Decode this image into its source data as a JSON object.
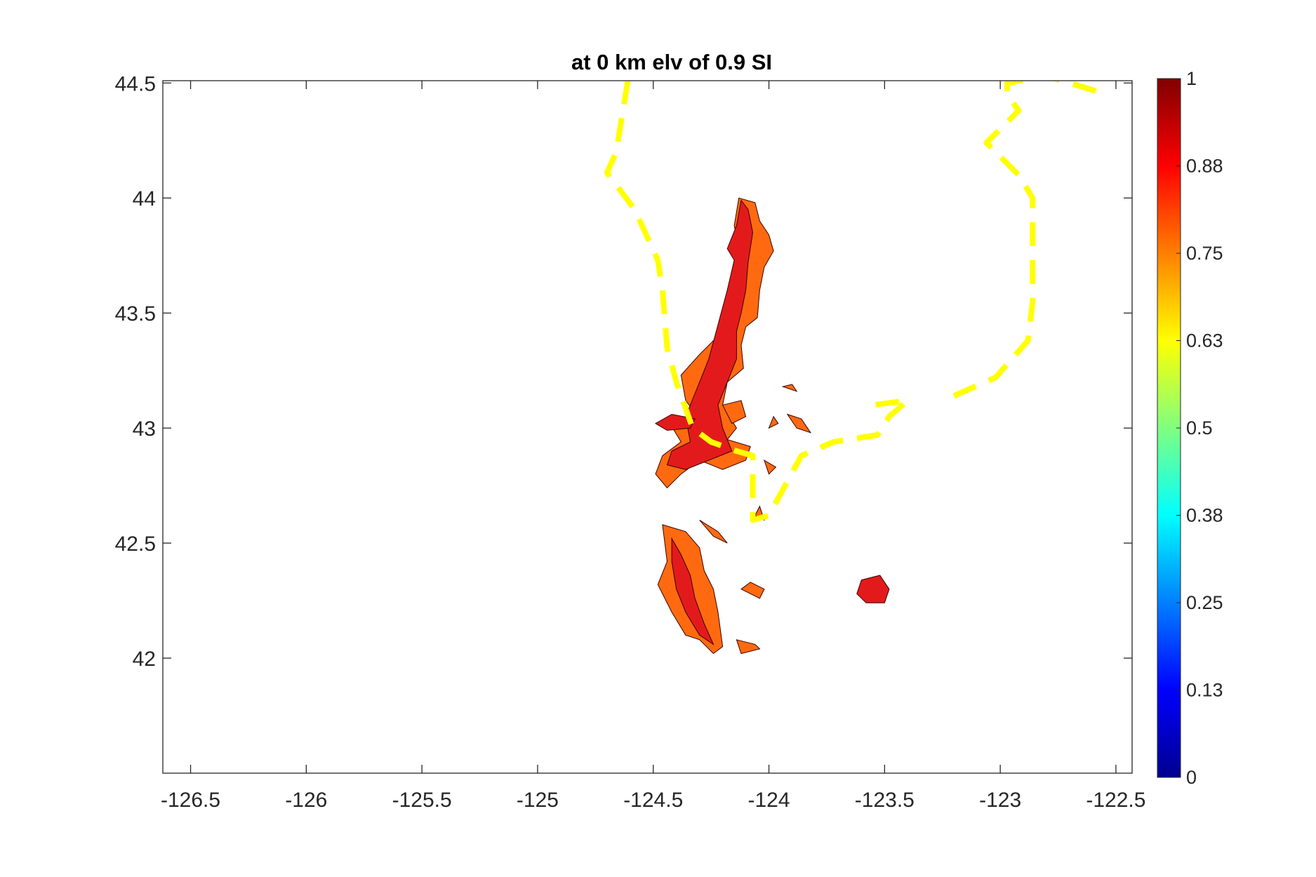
{
  "chart_data": {
    "type": "heatmap",
    "title": "at 0 km elv of 0.9 SI",
    "xlabel": "",
    "ylabel": "",
    "xlim": [
      -126.62,
      -122.43
    ],
    "ylim": [
      41.5,
      44.51
    ],
    "x_ticks": [
      -126.5,
      -126,
      -125.5,
      -125,
      -124.5,
      -124,
      -123.5,
      -123,
      -122.5
    ],
    "x_tick_labels": [
      "-126.5",
      "-126",
      "-125.5",
      "-125",
      "-124.5",
      "-124",
      "-123.5",
      "-123",
      "-122.5"
    ],
    "y_ticks": [
      42,
      42.5,
      43,
      43.5,
      44,
      44.5
    ],
    "y_tick_labels": [
      "42",
      "42.5",
      "43",
      "43.5",
      "44",
      "44.5"
    ],
    "colorbar": {
      "colormap": "jet",
      "range": [
        0,
        1
      ],
      "ticks": [
        0,
        0.125,
        0.25,
        0.375,
        0.5,
        0.625,
        0.75,
        0.875,
        1
      ],
      "tick_labels": [
        "0",
        "0.13",
        "0.25",
        "0.38",
        "0.5",
        "0.63",
        "0.75",
        "0.88",
        "1"
      ]
    },
    "colors": {
      "high": "#e31a1c",
      "mid": "#ff6a10",
      "boundary": "#ffff00"
    },
    "grid": false,
    "regions": [
      {
        "level": 0.8,
        "points": [
          [
            -124.13,
            44.0
          ],
          [
            -124.06,
            43.98
          ],
          [
            -124.04,
            43.9
          ],
          [
            -124.0,
            43.84
          ],
          [
            -123.98,
            43.77
          ],
          [
            -124.02,
            43.7
          ],
          [
            -124.04,
            43.6
          ],
          [
            -124.05,
            43.48
          ],
          [
            -124.1,
            43.44
          ],
          [
            -124.12,
            43.36
          ],
          [
            -124.11,
            43.26
          ],
          [
            -124.18,
            43.2
          ],
          [
            -124.2,
            43.1
          ],
          [
            -124.14,
            43.0
          ],
          [
            -124.18,
            42.95
          ],
          [
            -124.08,
            42.92
          ],
          [
            -124.1,
            42.86
          ],
          [
            -124.2,
            42.82
          ],
          [
            -124.3,
            42.86
          ],
          [
            -124.38,
            42.8
          ],
          [
            -124.44,
            42.74
          ],
          [
            -124.49,
            42.8
          ],
          [
            -124.46,
            42.88
          ],
          [
            -124.38,
            42.94
          ],
          [
            -124.44,
            43.04
          ],
          [
            -124.3,
            43.04
          ],
          [
            -124.36,
            43.12
          ],
          [
            -124.38,
            43.23
          ],
          [
            -124.3,
            43.32
          ],
          [
            -124.22,
            43.4
          ],
          [
            -124.2,
            43.5
          ],
          [
            -124.14,
            43.6
          ],
          [
            -124.12,
            43.75
          ],
          [
            -124.15,
            43.88
          ]
        ]
      },
      {
        "level": 0.92,
        "points": [
          [
            -124.12,
            43.99
          ],
          [
            -124.09,
            43.95
          ],
          [
            -124.07,
            43.85
          ],
          [
            -124.09,
            43.72
          ],
          [
            -124.1,
            43.6
          ],
          [
            -124.12,
            43.5
          ],
          [
            -124.14,
            43.42
          ],
          [
            -124.14,
            43.3
          ],
          [
            -124.18,
            43.2
          ],
          [
            -124.22,
            43.1
          ],
          [
            -124.2,
            43.0
          ],
          [
            -124.16,
            42.9
          ],
          [
            -124.26,
            42.86
          ],
          [
            -124.36,
            42.82
          ],
          [
            -124.44,
            42.84
          ],
          [
            -124.42,
            42.9
          ],
          [
            -124.34,
            42.94
          ],
          [
            -124.36,
            43.05
          ],
          [
            -124.32,
            43.15
          ],
          [
            -124.26,
            43.3
          ],
          [
            -124.22,
            43.45
          ],
          [
            -124.18,
            43.6
          ],
          [
            -124.15,
            43.73
          ],
          [
            -124.18,
            43.78
          ],
          [
            -124.14,
            43.88
          ]
        ]
      },
      {
        "level": 0.92,
        "points": [
          [
            -124.49,
            43.02
          ],
          [
            -124.42,
            43.06
          ],
          [
            -124.32,
            43.04
          ],
          [
            -124.34,
            43.0
          ],
          [
            -124.44,
            42.99
          ]
        ]
      },
      {
        "level": 0.8,
        "points": [
          [
            -124.2,
            43.1
          ],
          [
            -124.12,
            43.12
          ],
          [
            -124.1,
            43.05
          ],
          [
            -124.16,
            43.02
          ]
        ]
      },
      {
        "level": 0.8,
        "points": [
          [
            -124.46,
            42.58
          ],
          [
            -124.36,
            42.55
          ],
          [
            -124.3,
            42.48
          ],
          [
            -124.28,
            42.38
          ],
          [
            -124.24,
            42.3
          ],
          [
            -124.22,
            42.2
          ],
          [
            -124.2,
            42.05
          ],
          [
            -124.24,
            42.02
          ],
          [
            -124.3,
            42.08
          ],
          [
            -124.36,
            42.1
          ],
          [
            -124.42,
            42.2
          ],
          [
            -124.48,
            42.32
          ],
          [
            -124.44,
            42.42
          ]
        ]
      },
      {
        "level": 0.92,
        "points": [
          [
            -124.42,
            42.52
          ],
          [
            -124.38,
            42.45
          ],
          [
            -124.34,
            42.36
          ],
          [
            -124.32,
            42.26
          ],
          [
            -124.28,
            42.15
          ],
          [
            -124.24,
            42.06
          ],
          [
            -124.3,
            42.1
          ],
          [
            -124.36,
            42.2
          ],
          [
            -124.4,
            42.3
          ],
          [
            -124.42,
            42.42
          ]
        ]
      },
      {
        "level": 0.8,
        "points": [
          [
            -124.12,
            42.3
          ],
          [
            -124.04,
            42.26
          ],
          [
            -124.02,
            42.3
          ],
          [
            -124.08,
            42.33
          ]
        ]
      },
      {
        "level": 0.8,
        "points": [
          [
            -124.14,
            42.08
          ],
          [
            -124.06,
            42.06
          ],
          [
            -124.04,
            42.04
          ],
          [
            -124.12,
            42.02
          ]
        ]
      },
      {
        "level": 0.8,
        "points": [
          [
            -124.3,
            42.6
          ],
          [
            -124.22,
            42.55
          ],
          [
            -124.18,
            42.5
          ],
          [
            -124.24,
            42.53
          ]
        ]
      },
      {
        "level": 0.92,
        "points": [
          [
            -123.6,
            42.34
          ],
          [
            -123.52,
            42.36
          ],
          [
            -123.48,
            42.3
          ],
          [
            -123.5,
            42.24
          ],
          [
            -123.58,
            42.24
          ],
          [
            -123.62,
            42.28
          ]
        ]
      },
      {
        "level": 0.8,
        "points": [
          [
            -123.92,
            43.06
          ],
          [
            -123.86,
            43.04
          ],
          [
            -123.82,
            42.98
          ],
          [
            -123.88,
            43.0
          ]
        ]
      },
      {
        "level": 0.8,
        "points": [
          [
            -123.94,
            43.18
          ],
          [
            -123.9,
            43.19
          ],
          [
            -123.88,
            43.16
          ]
        ]
      },
      {
        "level": 0.8,
        "points": [
          [
            -124.02,
            42.86
          ],
          [
            -123.97,
            42.83
          ],
          [
            -124.0,
            42.8
          ]
        ]
      },
      {
        "level": 0.8,
        "points": [
          [
            -124.04,
            42.66
          ],
          [
            -124.02,
            42.6
          ],
          [
            -124.06,
            42.62
          ]
        ]
      },
      {
        "level": 0.8,
        "points": [
          [
            -123.98,
            43.05
          ],
          [
            -124.0,
            43.0
          ],
          [
            -123.96,
            43.02
          ]
        ]
      }
    ],
    "boundary_west": [
      [
        -124.61,
        44.51
      ],
      [
        -124.66,
        44.2
      ],
      [
        -124.7,
        44.11
      ],
      [
        -124.58,
        43.95
      ],
      [
        -124.48,
        43.73
      ],
      [
        -124.46,
        43.6
      ],
      [
        -124.44,
        43.35
      ],
      [
        -124.4,
        43.2
      ],
      [
        -124.33,
        43.0
      ],
      [
        -124.25,
        42.94
      ],
      [
        -124.14,
        42.9
      ],
      [
        -124.07,
        42.88
      ],
      [
        -124.07,
        42.6
      ],
      [
        -124.0,
        42.62
      ],
      [
        -123.93,
        42.75
      ],
      [
        -123.86,
        42.88
      ],
      [
        -123.72,
        42.94
      ],
      [
        -123.53,
        42.97
      ],
      [
        -123.48,
        43.05
      ],
      [
        -123.4,
        43.12
      ],
      [
        -123.55,
        43.1
      ]
    ],
    "boundary_east": [
      [
        -123.2,
        43.14
      ],
      [
        -123.02,
        43.22
      ],
      [
        -122.88,
        43.38
      ],
      [
        -122.86,
        43.55
      ],
      [
        -122.86,
        43.7
      ],
      [
        -122.86,
        44.0
      ],
      [
        -122.92,
        44.1
      ],
      [
        -123.06,
        44.24
      ],
      [
        -122.92,
        44.38
      ],
      [
        -122.97,
        44.45
      ],
      [
        -122.97,
        44.5
      ],
      [
        -122.8,
        44.53
      ],
      [
        -122.7,
        44.5
      ],
      [
        -122.57,
        44.46
      ]
    ]
  }
}
